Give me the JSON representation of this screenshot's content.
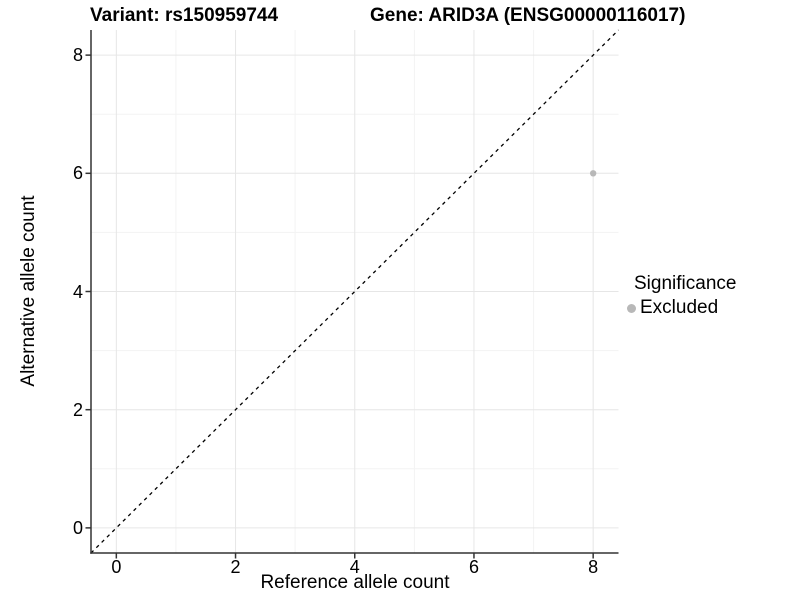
{
  "chart_data": {
    "type": "scatter",
    "title_left": "Variant: rs150959744",
    "title_right": "Gene: ARID3A (ENSG00000116017)",
    "xlabel": "Reference allele count",
    "ylabel": "Alternative allele count",
    "xlim": [
      -0.425,
      8.425
    ],
    "ylim": [
      -0.425,
      8.425
    ],
    "x_ticks": [
      0,
      2,
      4,
      6,
      8
    ],
    "y_ticks": [
      0,
      2,
      4,
      6,
      8
    ],
    "x_minor_ticks": [
      1,
      3,
      5,
      7
    ],
    "y_minor_ticks": [
      1,
      3,
      5,
      7
    ],
    "grid": true,
    "series": [
      {
        "name": "Excluded",
        "points": [
          {
            "x": 8,
            "y": 6
          }
        ]
      }
    ],
    "reference_line": {
      "slope": 1,
      "intercept": 0,
      "style": "dashed"
    },
    "legend": {
      "title": "Significance",
      "position": "right",
      "items": [
        {
          "label": "Excluded",
          "color": "#b8b8b8"
        }
      ]
    },
    "colors": {
      "point": "#b8b8b8",
      "grid_major": "#e6e6e6",
      "grid_minor": "#f3f3f3",
      "axis_line": "#333333",
      "reference_line": "#000000",
      "text": "#000000",
      "background": "#ffffff"
    }
  }
}
